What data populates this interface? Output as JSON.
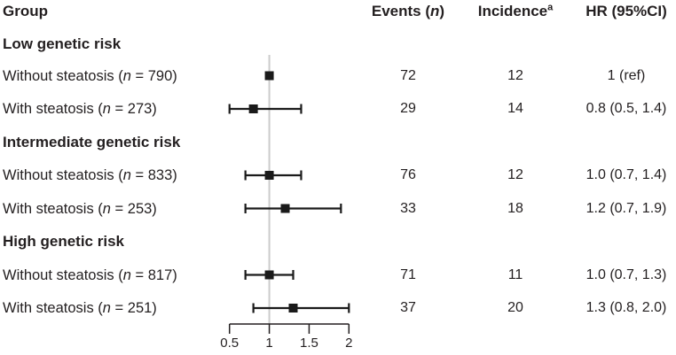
{
  "figure": {
    "headers": {
      "group": "Group",
      "events_prefix": "Events (",
      "events_n": "n",
      "events_suffix": ")",
      "incidence": "Incidence",
      "incidence_sup": "a",
      "hr": "HR (95%CI)"
    },
    "row_label_parts": {
      "open": " (",
      "n_char": "n",
      "eq": " = ",
      "close": ")"
    }
  },
  "chart_data": {
    "type": "forest",
    "x_axis": {
      "scale": "linear",
      "range": [
        0.5,
        2.0
      ],
      "tick_values": [
        0.5,
        1,
        1.5,
        2
      ],
      "tick_labels": [
        "0.5",
        "1",
        "1.5",
        "2"
      ]
    },
    "reference_line_x": 1.0,
    "groups": [
      {
        "label": "Low genetic risk",
        "rows": [
          {
            "name": "Without steatosis",
            "n": "790",
            "events": "72",
            "incidence": "12",
            "hr_text": "1 (ref)",
            "hr": 1.0,
            "ci_low": null,
            "ci_high": null
          },
          {
            "name": "With steatosis",
            "n": "273",
            "events": "29",
            "incidence": "14",
            "hr_text": "0.8 (0.5, 1.4)",
            "hr": 0.8,
            "ci_low": 0.5,
            "ci_high": 1.4
          }
        ]
      },
      {
        "label": "Intermediate genetic risk",
        "rows": [
          {
            "name": "Without steatosis",
            "n": "833",
            "events": "76",
            "incidence": "12",
            "hr_text": "1.0 (0.7, 1.4)",
            "hr": 1.0,
            "ci_low": 0.7,
            "ci_high": 1.4
          },
          {
            "name": "With steatosis",
            "n": "253",
            "events": "33",
            "incidence": "18",
            "hr_text": "1.2 (0.7, 1.9)",
            "hr": 1.2,
            "ci_low": 0.7,
            "ci_high": 1.9
          }
        ]
      },
      {
        "label": "High genetic risk",
        "rows": [
          {
            "name": "Without steatosis",
            "n": "817",
            "events": "71",
            "incidence": "11",
            "hr_text": "1.0 (0.7, 1.3)",
            "hr": 1.0,
            "ci_low": 0.7,
            "ci_high": 1.3
          },
          {
            "name": "With steatosis",
            "n": "251",
            "events": "37",
            "incidence": "20",
            "hr_text": "1.3 (0.8, 2.0)",
            "hr": 1.3,
            "ci_low": 0.8,
            "ci_high": 2.0
          }
        ]
      }
    ]
  },
  "colors": {
    "text": "#231f20",
    "marker": "#1a1a1a",
    "axis": "#231f20",
    "reference_line": "#cccccc",
    "background": "#ffffff"
  }
}
